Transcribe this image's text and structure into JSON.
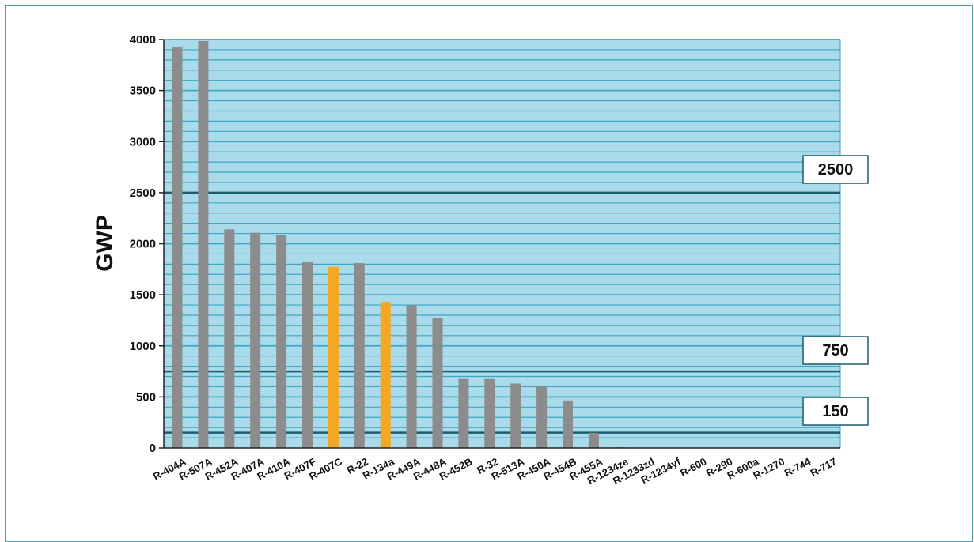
{
  "chart_data": {
    "type": "bar",
    "ylabel": "GWP",
    "xlabel": "",
    "title": "",
    "ylim": [
      0,
      4000
    ],
    "yticks": [
      0,
      500,
      1000,
      1500,
      2000,
      2500,
      3000,
      3500,
      4000
    ],
    "grid": true,
    "colors": {
      "plot_background": "#a9dbeb",
      "gridline": "#3fa5c0",
      "threshold_line": "#1b5c6e",
      "bar_default": "#8c8c8c",
      "bar_highlight": "#f5a623"
    },
    "categories": [
      "R-404A",
      "R-507A",
      "R-452A",
      "R-407A",
      "R-410A",
      "R-407F",
      "R-407C",
      "R-22",
      "R-134a",
      "R-449A",
      "R-448A",
      "R-452B",
      "R-32",
      "R-513A",
      "R-450A",
      "R-454B",
      "R-455A",
      "R-1234ze",
      "R-1233zd",
      "R-1234yf",
      "R-600",
      "R-290",
      "R-600a",
      "R-1270",
      "R-744",
      "R-717"
    ],
    "values": [
      3922,
      3985,
      2141,
      2107,
      2088,
      1825,
      1774,
      1810,
      1430,
      1397,
      1273,
      676,
      675,
      631,
      601,
      466,
      148,
      7,
      1,
      4,
      4,
      3,
      3,
      2,
      1,
      0
    ],
    "highlighted": [
      "R-407C",
      "R-134a"
    ],
    "reference_lines": [
      {
        "value": 2500,
        "label": "2500"
      },
      {
        "value": 750,
        "label": "750"
      },
      {
        "value": 150,
        "label": "150"
      }
    ]
  }
}
